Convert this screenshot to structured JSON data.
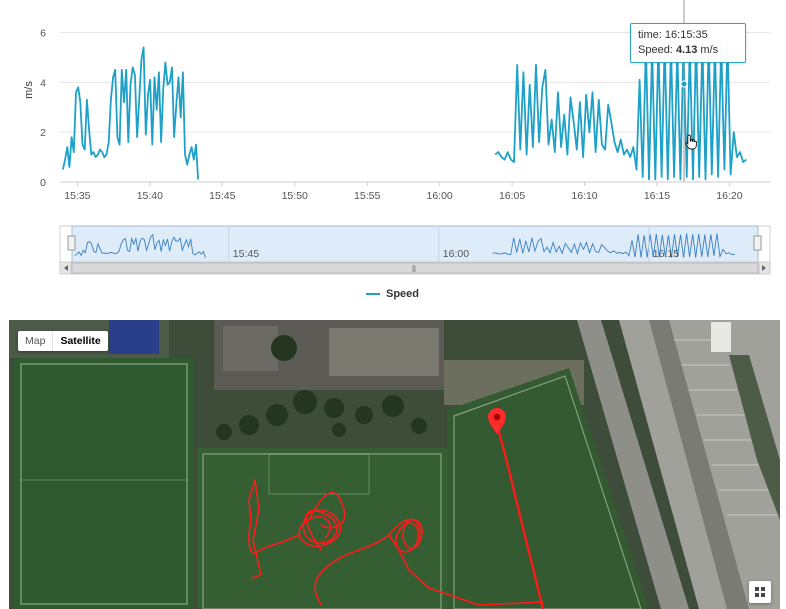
{
  "chart_data": {
    "type": "line",
    "title": "",
    "xlabel": "",
    "ylabel": "m/s",
    "x_tick_labels": [
      "15:35",
      "15:40",
      "15:45",
      "15:50",
      "15:55",
      "16:00",
      "16:05",
      "16:10",
      "16:15",
      "16:20"
    ],
    "y_ticks": [
      0,
      2,
      4,
      6
    ],
    "ylim": [
      0,
      6.5
    ],
    "xlim_minutes_from_first_tick": [
      -1.2,
      47.8
    ],
    "grid": true,
    "legend_placement": "bottom-center",
    "series": [
      {
        "name": "Speed",
        "color": "#1da1c8",
        "segments": [
          {
            "start_time": "15:34:00",
            "end_time": "15:43:20",
            "values": [
              0.5,
              0.9,
              1.4,
              0.6,
              1.8,
              1.2,
              3.6,
              3.8,
              3.2,
              1.5,
              1.3,
              3.3,
              2.1,
              1.1,
              1.2,
              1.0,
              1.1,
              1.3,
              1.2,
              1.0,
              1.1,
              1.6,
              3.3,
              4.2,
              4.5,
              1.8,
              1.5,
              4.5,
              3.2,
              4.5,
              1.6,
              3.9,
              4.6,
              4.3,
              1.8,
              3.3,
              4.9,
              5.4,
              1.9,
              3.5,
              4.1,
              1.5,
              4.2,
              2.9,
              4.4,
              1.6,
              3.7,
              4.8,
              3.9,
              4.0,
              4.6,
              1.8,
              3.1,
              4.2,
              2.6,
              4.4,
              1.1,
              0.7,
              1.1,
              1.4,
              0.9,
              1.5,
              0.1
            ]
          },
          {
            "start_time": "16:03:50",
            "end_time": "16:21:10",
            "values": [
              1.1,
              1.2,
              1.0,
              0.9,
              1.2,
              0.9,
              0.8,
              4.7,
              1.3,
              4.4,
              1.1,
              3.9,
              1.4,
              4.7,
              1.6,
              3.8,
              4.5,
              1.5,
              2.5,
              1.2,
              3.6,
              1.4,
              2.7,
              1.1,
              3.4,
              2.4,
              1.3,
              3.2,
              1.0,
              3.5,
              2.0,
              3.6,
              1.2,
              3.3,
              1.5,
              1.3,
              3.1,
              2.4,
              1.6,
              1.2,
              1.7,
              1.1,
              1.3,
              1.0,
              1.4,
              0.5,
              4.1,
              0.2,
              5.5,
              0.1,
              5.3,
              0.1,
              5.5,
              0.2,
              5.6,
              0.1,
              5.4,
              0.2,
              5.3,
              0.1,
              5.5,
              0.2,
              5.4,
              0.1,
              5.7,
              0.2,
              5.5,
              0.1,
              5.6,
              0.3,
              5.4,
              0.2,
              5.5,
              0.5,
              5.7,
              0.3,
              2.0,
              1.0,
              1.2,
              0.8,
              0.9
            ]
          }
        ]
      }
    ],
    "tooltip": {
      "time_label": "time:",
      "time_value": "16:15:35",
      "speed_label": "Speed:",
      "speed_value": "4.13",
      "speed_unit": "m/s"
    },
    "navigator": {
      "tick_labels": [
        "15:45",
        "16:00",
        "16:15"
      ],
      "scroll_grip": "⦀"
    }
  },
  "legend": {
    "speed_label": "Speed",
    "color": "#1da1c8"
  },
  "map": {
    "type_buttons": [
      "Map",
      "Satellite"
    ],
    "active_type": "Satellite",
    "track_color": "#ff1a1a",
    "marker_icon": "map-pin-icon",
    "corner_icon": "grid-icon"
  },
  "colors": {
    "series": "#1da1c8",
    "navigator_fill": "#d6e7f8",
    "navigator_border": "#a7b9d6",
    "grid": "#e6e6e6"
  }
}
